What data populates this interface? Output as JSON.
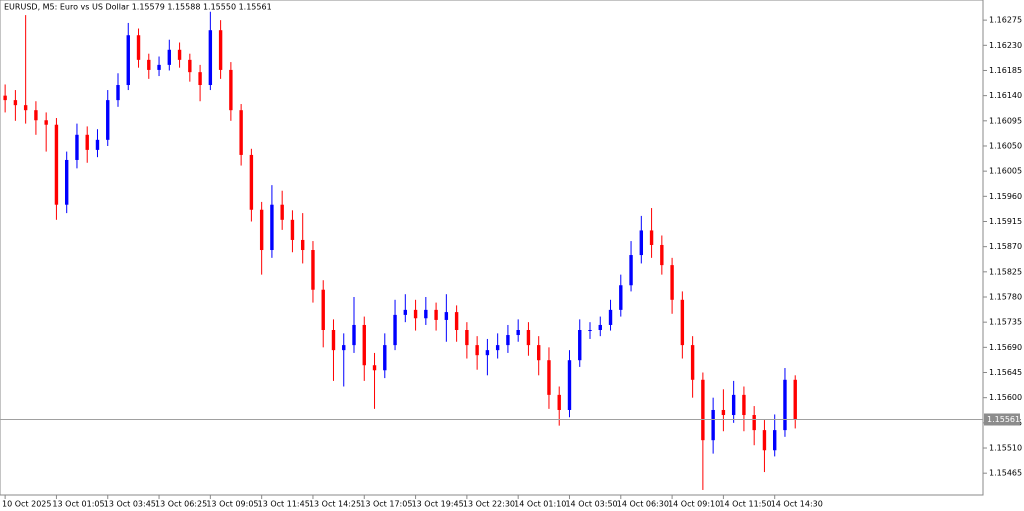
{
  "chart_data": {
    "type": "candlestick",
    "title": "EURUSD, M5:  Euro vs US Dollar  1.15579 1.15588 1.15550 1.15561",
    "up_color": "#0000ff",
    "down_color": "#ff0000",
    "series": {
      "open": [
        1.1614,
        1.16132,
        1.16123,
        1.16114,
        1.16096,
        1.16088,
        1.15945,
        1.16025,
        1.1607,
        1.16043,
        1.16061,
        1.16132,
        1.16159,
        1.16248,
        1.16204,
        1.16186,
        1.16195,
        1.16222,
        1.16204,
        1.16182,
        1.16159,
        1.16257,
        1.16186,
        1.16114,
        1.16034,
        1.15936,
        1.15864,
        1.15945,
        1.15918,
        1.15882,
        1.15864,
        1.15793,
        1.15721,
        1.15685,
        1.15694,
        1.1573,
        1.15658,
        1.15649,
        1.15694,
        1.15748,
        1.15757,
        1.15742,
        1.15757,
        1.15739,
        1.15753,
        1.15721,
        1.15694,
        1.15676,
        1.15685,
        1.15694,
        1.15712,
        1.15721,
        1.15694,
        1.15667,
        1.15605,
        1.15578,
        1.15667,
        1.15721,
        1.15721,
        1.1573,
        1.15757,
        1.15801,
        1.15855,
        1.15899,
        1.15873,
        1.15837,
        1.15775,
        1.15694,
        1.15632,
        1.15524,
        1.15578,
        1.15569,
        1.15605,
        1.15569,
        1.15542,
        1.15506,
        1.15542,
        1.15632
      ],
      "high": [
        1.1616,
        1.1615,
        1.16284,
        1.1613,
        1.1611,
        1.161,
        1.1604,
        1.1609,
        1.16085,
        1.1608,
        1.1615,
        1.1618,
        1.1627,
        1.1626,
        1.16215,
        1.1621,
        1.1624,
        1.16235,
        1.16215,
        1.16195,
        1.1629,
        1.16275,
        1.162,
        1.16125,
        1.16045,
        1.1595,
        1.1598,
        1.1597,
        1.15935,
        1.1593,
        1.1588,
        1.1581,
        1.1574,
        1.15715,
        1.1578,
        1.15745,
        1.1568,
        1.15715,
        1.15775,
        1.15785,
        1.15775,
        1.1578,
        1.1577,
        1.15785,
        1.15765,
        1.15735,
        1.1571,
        1.15705,
        1.15715,
        1.1573,
        1.1574,
        1.15735,
        1.1571,
        1.1569,
        1.1562,
        1.15685,
        1.1574,
        1.15735,
        1.15745,
        1.15775,
        1.1582,
        1.1588,
        1.15925,
        1.15939,
        1.1589,
        1.1585,
        1.1579,
        1.1571,
        1.15645,
        1.156,
        1.15615,
        1.1563,
        1.1562,
        1.15585,
        1.1556,
        1.1557,
        1.15653,
        1.1564
      ],
      "low": [
        1.1611,
        1.16095,
        1.1609,
        1.1607,
        1.1604,
        1.15918,
        1.1593,
        1.1601,
        1.1602,
        1.1603,
        1.1605,
        1.1612,
        1.1615,
        1.1619,
        1.1617,
        1.16175,
        1.16185,
        1.1619,
        1.16165,
        1.1613,
        1.1615,
        1.1617,
        1.16095,
        1.16015,
        1.15915,
        1.1582,
        1.1585,
        1.159,
        1.1586,
        1.1584,
        1.1577,
        1.1569,
        1.1563,
        1.1562,
        1.1568,
        1.1563,
        1.1558,
        1.15635,
        1.15685,
        1.15735,
        1.1572,
        1.1573,
        1.1572,
        1.157,
        1.157,
        1.1567,
        1.1565,
        1.1564,
        1.1567,
        1.1568,
        1.157,
        1.15675,
        1.1564,
        1.1558,
        1.1555,
        1.15565,
        1.15655,
        1.15705,
        1.1571,
        1.1572,
        1.15745,
        1.1579,
        1.1584,
        1.1585,
        1.1582,
        1.1575,
        1.1567,
        1.156,
        1.15435,
        1.155,
        1.1554,
        1.15555,
        1.1554,
        1.15515,
        1.15467,
        1.15495,
        1.1553,
        1.15545
      ],
      "close": [
        1.16132,
        1.16123,
        1.16114,
        1.16096,
        1.16088,
        1.15945,
        1.16025,
        1.1607,
        1.16043,
        1.16061,
        1.16132,
        1.16159,
        1.16248,
        1.16204,
        1.16186,
        1.16195,
        1.16222,
        1.16204,
        1.16182,
        1.16159,
        1.16257,
        1.16186,
        1.16114,
        1.16034,
        1.15936,
        1.15864,
        1.15945,
        1.15918,
        1.15882,
        1.15864,
        1.15793,
        1.15721,
        1.15685,
        1.15694,
        1.1573,
        1.15658,
        1.15649,
        1.15694,
        1.15748,
        1.15757,
        1.15742,
        1.15757,
        1.15739,
        1.15753,
        1.15721,
        1.15694,
        1.15676,
        1.15685,
        1.15694,
        1.15712,
        1.15721,
        1.15694,
        1.15667,
        1.15605,
        1.15578,
        1.15667,
        1.15721,
        1.15721,
        1.1573,
        1.15757,
        1.15801,
        1.15855,
        1.15899,
        1.15873,
        1.15837,
        1.15775,
        1.15694,
        1.15632,
        1.15524,
        1.15578,
        1.15569,
        1.15605,
        1.15569,
        1.15542,
        1.15506,
        1.15542,
        1.15632,
        1.15561
      ]
    },
    "last_price": 1.15561,
    "xlim": [
      -0.5,
      95.3
    ],
    "xticks": [
      {
        "value": 0,
        "label": "10 Oct 2025"
      },
      {
        "value": 5,
        "label": "13 Oct 01:05"
      },
      {
        "value": 10,
        "label": "13 Oct 03:45"
      },
      {
        "value": 15,
        "label": "13 Oct 06:25"
      },
      {
        "value": 20,
        "label": "13 Oct 09:05"
      },
      {
        "value": 25,
        "label": "13 Oct 11:45"
      },
      {
        "value": 30,
        "label": "13 Oct 14:25"
      },
      {
        "value": 35,
        "label": "13 Oct 17:05"
      },
      {
        "value": 40,
        "label": "13 Oct 19:45"
      },
      {
        "value": 45,
        "label": "13 Oct 22:30"
      },
      {
        "value": 50,
        "label": "14 Oct 01:10"
      },
      {
        "value": 55,
        "label": "14 Oct 03:50"
      },
      {
        "value": 60,
        "label": "14 Oct 06:30"
      },
      {
        "value": 65,
        "label": "14 Oct 09:10"
      },
      {
        "value": 70,
        "label": "14 Oct 11:50"
      },
      {
        "value": 75,
        "label": "14 Oct 14:30"
      }
    ],
    "ylim": [
      1.15426,
      1.16311
    ],
    "yticks": [
      1.16275,
      {
        "value": 1.1623,
        "label": "1.16230"
      },
      1.16185,
      {
        "value": 1.1614,
        "label": "1.16140"
      },
      1.16095,
      {
        "value": 1.1605,
        "label": "1.16050"
      },
      1.16005,
      {
        "value": 1.1596,
        "label": "1.15960"
      },
      1.15915,
      {
        "value": 1.1587,
        "label": "1.15870"
      },
      1.15825,
      {
        "value": 1.1578,
        "label": "1.15780"
      },
      1.15735,
      {
        "value": 1.1569,
        "label": "1.15690"
      },
      1.15645,
      {
        "value": 1.156,
        "label": "1.15600"
      },
      1.15555,
      {
        "value": 1.1551,
        "label": "1.15510"
      },
      1.15465
    ]
  }
}
